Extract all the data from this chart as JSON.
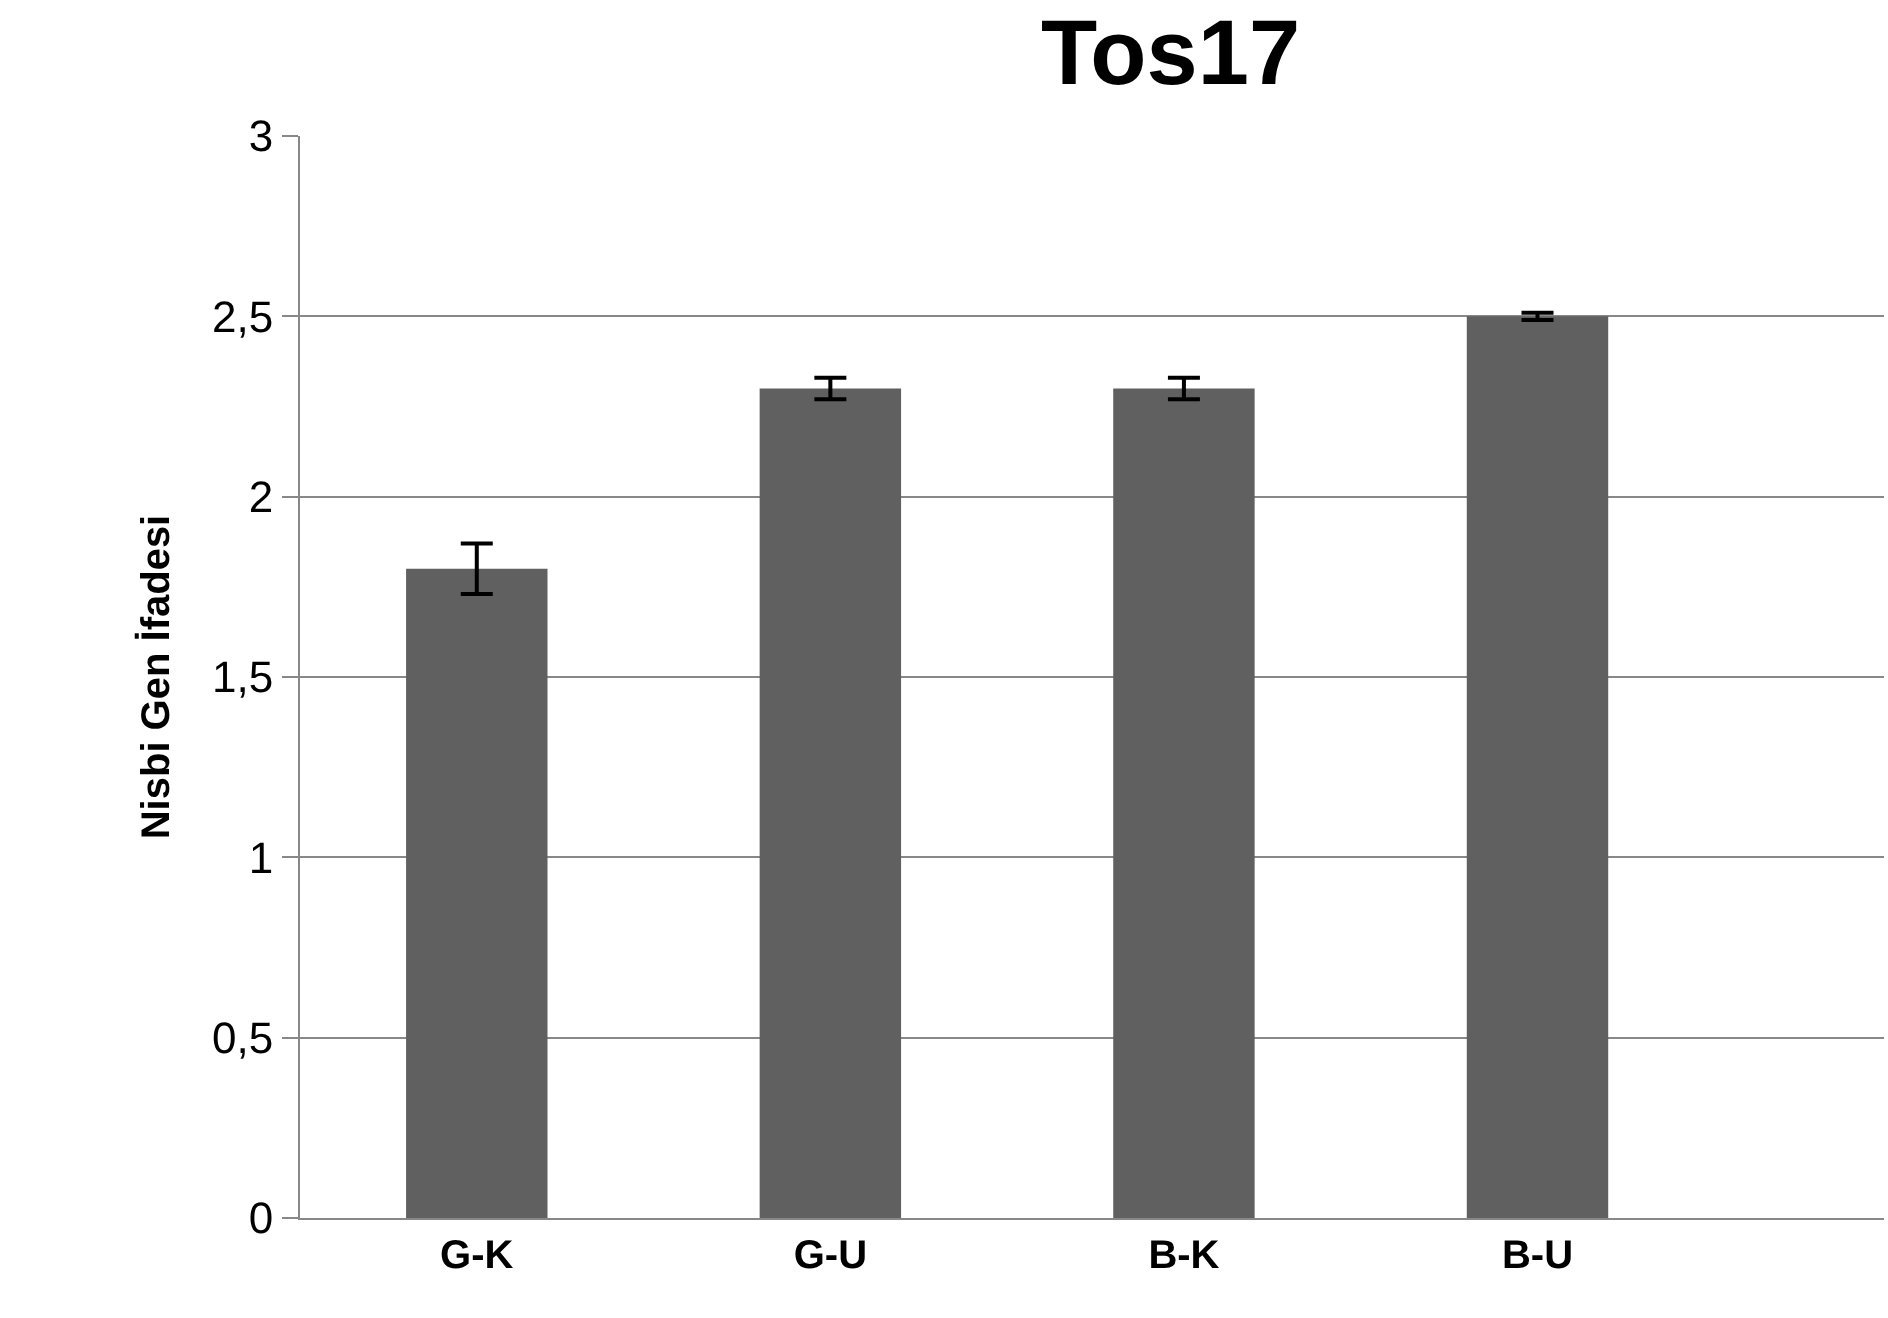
{
  "chart_data": {
    "type": "bar",
    "title": "Tos17",
    "ylabel": "Nisbi Gen İfadesi",
    "categories": [
      "G-K",
      "G-U",
      "B-K",
      "B-U"
    ],
    "values": [
      1.8,
      2.3,
      2.3,
      2.5
    ],
    "errors": [
      0.07,
      0.03,
      0.03,
      0.01
    ],
    "color": "#606060",
    "ylim": [
      0,
      3
    ],
    "yticks": [
      0,
      {
        "value": 0.5,
        "label": "0,5"
      },
      1,
      {
        "value": 1.5,
        "label": "1,5"
      },
      2,
      {
        "value": 2.5,
        "label": "2,5"
      },
      3
    ],
    "grid": "y"
  }
}
